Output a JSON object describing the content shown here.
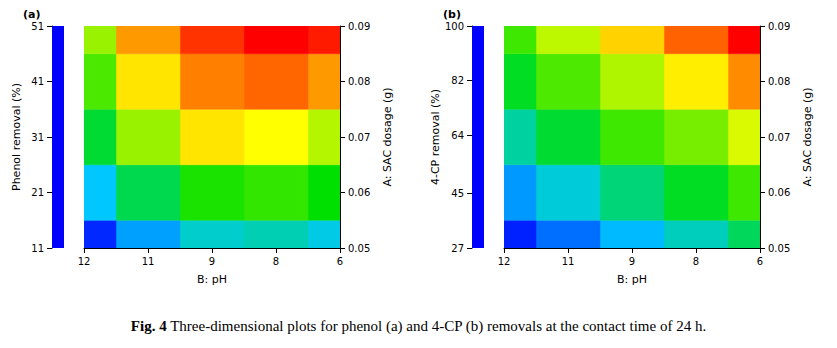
{
  "chart_data": [
    {
      "type": "surface_map",
      "title": "(a)",
      "x_label": "B: pH",
      "y_label": "A: SAC dosage (g)",
      "z_label": "Phenol removal (%)",
      "x": [
        6,
        7.5,
        9,
        10.5,
        12
      ],
      "y": [
        0.05,
        0.06,
        0.07,
        0.08,
        0.09
      ],
      "z": [
        [
          22,
          24,
          23,
          19,
          13
        ],
        [
          31,
          33,
          32,
          28,
          21
        ],
        [
          38,
          41,
          42,
          37,
          29
        ],
        [
          45,
          47,
          46,
          42,
          34
        ],
        [
          50,
          51,
          49,
          45,
          37
        ]
      ],
      "xlim": [
        6,
        12
      ],
      "xticks": [
        6,
        {
          "value": 7.5,
          "label": "8"
        },
        9,
        {
          "value": 10.5,
          "label": "11"
        },
        12
      ],
      "ylim": [
        0.05,
        0.09
      ],
      "yticks": [
        0.05,
        0.06,
        0.07,
        0.08,
        0.09
      ],
      "zlim": [
        11,
        51
      ],
      "zticks": [
        11,
        21,
        31,
        41,
        51
      ],
      "colors": [
        "#0000ff",
        "#00c8ff",
        "#00e000",
        "#ffff00",
        "#ff0000"
      ]
    },
    {
      "type": "surface_map",
      "title": "(b)",
      "x_label": "B: pH",
      "y_label": "A: SAC dosage (g)",
      "z_label": "4-CP removal (%)",
      "x": [
        6,
        7.5,
        9,
        10.5,
        12
      ],
      "y": [
        0.05,
        0.06,
        0.07,
        0.08,
        0.09
      ],
      "z": [
        [
          57,
          50,
          44,
          37,
          30
        ],
        [
          68,
          61,
          55,
          48,
          41
        ],
        [
          79,
          72,
          68,
          60,
          52
        ],
        [
          90,
          83,
          76,
          69,
          61
        ],
        [
          100,
          93,
          85,
          77,
          68
        ]
      ],
      "xlim": [
        6,
        12
      ],
      "xticks": [
        6,
        {
          "value": 7.5,
          "label": "8"
        },
        9,
        {
          "value": 10.5,
          "label": "11"
        },
        12
      ],
      "ylim": [
        0.05,
        0.09
      ],
      "yticks": [
        0.05,
        0.06,
        0.07,
        0.08,
        0.09
      ],
      "zlim": [
        27,
        100
      ],
      "zticks": [
        27,
        45,
        64,
        82,
        100
      ],
      "colors": [
        "#0000ff",
        "#00c8ff",
        "#00e000",
        "#ffff00",
        "#ff0000"
      ]
    }
  ],
  "caption": {
    "label": "Fig. 4",
    "text": "Three-dimensional plots for phenol (a) and 4-CP (b) removals at the contact time of 24 h."
  }
}
